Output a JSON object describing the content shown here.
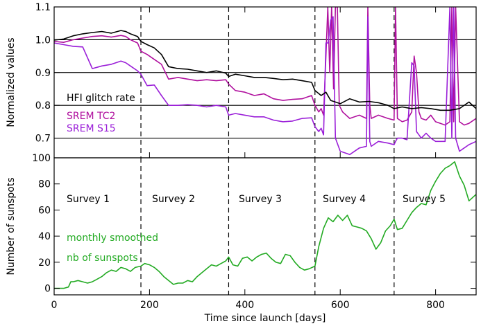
{
  "chart_data": [
    {
      "type": "line",
      "ylabel": "Normalized values",
      "ylim": [
        0.64,
        1.1
      ],
      "xlim": [
        0,
        885
      ],
      "yticks": [
        "0.7",
        "0.8",
        "0.9",
        "1.0",
        "1.1"
      ],
      "ytick_values": [
        0.7,
        0.8,
        0.9,
        1.0,
        1.1
      ],
      "hlines": [
        0.7,
        0.8,
        0.9,
        1.0
      ],
      "vlines": [
        182,
        366,
        547,
        713
      ],
      "annotations": [
        {
          "text": "HFI glitch rate",
          "color": "#000000"
        },
        {
          "text": "SREM TC2",
          "color": "#b0109e"
        },
        {
          "text": "SREM S15",
          "color": "#9a1ed8"
        }
      ],
      "series": [
        {
          "name": "HFI glitch rate",
          "color": "#000000",
          "x": [
            0,
            20,
            40,
            60,
            80,
            100,
            120,
            140,
            150,
            160,
            175,
            182,
            195,
            210,
            225,
            240,
            260,
            280,
            300,
            320,
            340,
            360,
            366,
            380,
            400,
            420,
            440,
            460,
            480,
            500,
            520,
            540,
            547,
            560,
            570,
            580,
            600,
            620,
            640,
            660,
            680,
            700,
            713,
            730,
            750,
            770,
            790,
            810,
            830,
            850,
            870,
            885
          ],
          "y": [
            0.999,
            1.002,
            1.012,
            1.018,
            1.022,
            1.025,
            1.02,
            1.028,
            1.025,
            1.018,
            1.01,
            0.995,
            0.985,
            0.975,
            0.955,
            0.918,
            0.912,
            0.91,
            0.905,
            0.9,
            0.905,
            0.898,
            0.888,
            0.895,
            0.89,
            0.885,
            0.885,
            0.882,
            0.878,
            0.88,
            0.875,
            0.87,
            0.845,
            0.83,
            0.84,
            0.815,
            0.805,
            0.82,
            0.81,
            0.812,
            0.808,
            0.8,
            0.79,
            0.795,
            0.79,
            0.793,
            0.79,
            0.785,
            0.785,
            0.79,
            0.81,
            0.79
          ]
        },
        {
          "name": "SREM TC2",
          "color": "#b0109e",
          "x": [
            0,
            20,
            40,
            60,
            80,
            100,
            120,
            140,
            150,
            160,
            175,
            182,
            195,
            210,
            225,
            240,
            260,
            280,
            300,
            320,
            340,
            360,
            366,
            380,
            400,
            420,
            440,
            460,
            480,
            500,
            520,
            540,
            547,
            555,
            560,
            565,
            570,
            574,
            578,
            582,
            586,
            590,
            594,
            598,
            605,
            620,
            640,
            655,
            658,
            662,
            665,
            680,
            700,
            713,
            716,
            720,
            730,
            740,
            750,
            755,
            760,
            765,
            770,
            780,
            790,
            800,
            820,
            830,
            834,
            838,
            842,
            850,
            860,
            870,
            885
          ],
          "y": [
            0.995,
            0.992,
            1.0,
            1.005,
            1.01,
            1.012,
            1.008,
            1.013,
            1.01,
            1.0,
            0.99,
            0.965,
            0.955,
            0.94,
            0.925,
            0.88,
            0.885,
            0.88,
            0.875,
            0.878,
            0.875,
            0.878,
            0.865,
            0.845,
            0.84,
            0.83,
            0.835,
            0.82,
            0.815,
            0.818,
            0.82,
            0.83,
            0.8,
            0.78,
            0.79,
            0.77,
            0.95,
            1.1,
            0.9,
            1.1,
            0.85,
            1.1,
            1.1,
            0.8,
            0.78,
            0.76,
            0.77,
            0.76,
            1.1,
            0.8,
            0.76,
            0.77,
            0.76,
            0.755,
            1.1,
            0.76,
            0.75,
            0.755,
            0.78,
            0.95,
            0.9,
            0.78,
            0.76,
            0.755,
            0.77,
            0.75,
            0.74,
            0.75,
            1.1,
            0.75,
            1.1,
            0.75,
            0.74,
            0.745,
            0.76
          ]
        },
        {
          "name": "SREM S15",
          "color": "#9a1ed8",
          "x": [
            0,
            20,
            40,
            60,
            80,
            100,
            120,
            140,
            150,
            160,
            175,
            182,
            195,
            210,
            225,
            240,
            260,
            280,
            300,
            320,
            340,
            360,
            366,
            380,
            400,
            420,
            440,
            460,
            480,
            500,
            520,
            540,
            547,
            555,
            560,
            565,
            570,
            575,
            580,
            585,
            590,
            600,
            620,
            640,
            655,
            658,
            662,
            665,
            680,
            700,
            713,
            716,
            720,
            730,
            740,
            750,
            755,
            760,
            765,
            770,
            780,
            790,
            800,
            820,
            830,
            834,
            838,
            842,
            850,
            860,
            870,
            885
          ],
          "y": [
            0.99,
            0.985,
            0.98,
            0.978,
            0.912,
            0.92,
            0.925,
            0.935,
            0.93,
            0.92,
            0.905,
            0.895,
            0.86,
            0.862,
            0.83,
            0.8,
            0.8,
            0.802,
            0.8,
            0.795,
            0.8,
            0.795,
            0.77,
            0.775,
            0.77,
            0.765,
            0.765,
            0.755,
            0.75,
            0.752,
            0.76,
            0.762,
            0.735,
            0.72,
            0.73,
            0.71,
            0.99,
            0.99,
            1.06,
            1.07,
            0.7,
            0.66,
            0.65,
            0.67,
            0.675,
            1.07,
            0.69,
            0.675,
            0.69,
            0.685,
            0.68,
            0.69,
            0.7,
            0.7,
            0.695,
            0.93,
            0.92,
            0.72,
            0.71,
            0.7,
            0.715,
            0.7,
            0.69,
            0.69,
            1.1,
            0.7,
            1.1,
            0.7,
            0.66,
            0.67,
            0.68,
            0.69
          ]
        }
      ]
    },
    {
      "type": "line",
      "xlabel": "Time since launch [days]",
      "ylabel": "Number of sunspots",
      "xlim": [
        0,
        885
      ],
      "ylim": [
        -5,
        100
      ],
      "xticks": [
        "0",
        "200",
        "400",
        "600",
        "800"
      ],
      "xtick_values": [
        0,
        200,
        400,
        600,
        800
      ],
      "yticks": [
        "0",
        "20",
        "40",
        "60",
        "80",
        "100"
      ],
      "ytick_values": [
        0,
        20,
        40,
        60,
        80,
        100
      ],
      "vlines": [
        182,
        366,
        547,
        713
      ],
      "surveys": [
        "Survey 1",
        "Survey 2",
        "Survey 3",
        "Survey 4",
        "Survey 5"
      ],
      "annotations": [
        {
          "text": "monthly smoothed",
          "color": "#22aa22"
        },
        {
          "text": "nb of sunspots",
          "color": "#22aa22"
        }
      ],
      "series": [
        {
          "name": "monthly smoothed nb of sunspots",
          "color": "#22aa22",
          "x": [
            0,
            10,
            20,
            30,
            35,
            40,
            50,
            60,
            70,
            80,
            90,
            100,
            110,
            120,
            130,
            140,
            150,
            160,
            170,
            182,
            190,
            200,
            210,
            220,
            230,
            240,
            250,
            260,
            270,
            280,
            290,
            300,
            310,
            320,
            330,
            340,
            350,
            360,
            366,
            375,
            385,
            395,
            405,
            415,
            425,
            435,
            445,
            455,
            465,
            475,
            485,
            495,
            505,
            515,
            525,
            535,
            547,
            555,
            565,
            575,
            585,
            595,
            605,
            615,
            625,
            635,
            645,
            655,
            665,
            675,
            685,
            695,
            705,
            713,
            720,
            730,
            740,
            750,
            760,
            770,
            780,
            790,
            800,
            810,
            820,
            830,
            840,
            850,
            860,
            870,
            885
          ],
          "y": [
            0,
            0,
            0,
            1,
            5,
            5,
            6,
            5,
            4,
            5,
            7,
            9,
            12,
            14,
            13,
            16,
            15,
            13,
            16,
            17,
            19,
            18,
            16,
            13,
            9,
            6,
            3,
            4,
            4,
            6,
            5,
            9,
            12,
            15,
            18,
            17,
            19,
            21,
            24,
            18,
            17,
            23,
            24,
            21,
            24,
            26,
            27,
            23,
            20,
            19,
            26,
            25,
            20,
            16,
            14,
            15,
            17,
            32,
            46,
            54,
            51,
            56,
            52,
            56,
            48,
            47,
            46,
            44,
            38,
            30,
            35,
            44,
            48,
            53,
            45,
            46,
            52,
            58,
            62,
            65,
            64,
            75,
            82,
            88,
            92,
            94,
            97,
            86,
            79,
            67,
            72
          ]
        }
      ]
    }
  ]
}
